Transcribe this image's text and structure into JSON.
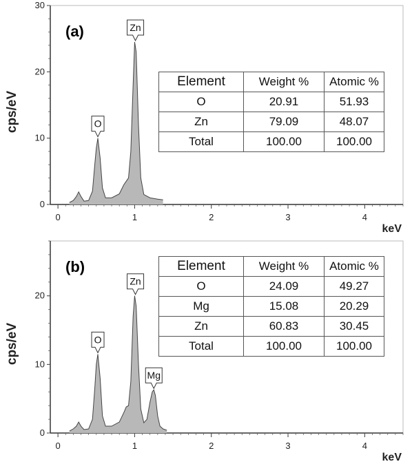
{
  "chart_data": [
    {
      "type": "area",
      "panel_label": "(a)",
      "ylabel": "cps/eV",
      "xunit": "keV",
      "xlim": [
        -0.1,
        4.5
      ],
      "ylim": [
        0,
        30
      ],
      "xticks": [
        0,
        1,
        2,
        3,
        4
      ],
      "yticks": [
        0,
        10,
        20,
        30
      ],
      "spectrum": {
        "x": [
          0.15,
          0.2,
          0.24,
          0.27,
          0.3,
          0.34,
          0.4,
          0.45,
          0.48,
          0.5,
          0.52,
          0.55,
          0.58,
          0.62,
          0.7,
          0.8,
          0.86,
          0.89,
          0.92,
          0.95,
          0.98,
          1.0,
          1.02,
          1.05,
          1.08,
          1.12,
          1.2,
          1.3,
          1.37
        ],
        "y": [
          0.3,
          0.6,
          1.2,
          1.9,
          1.2,
          0.5,
          0.6,
          2.0,
          6.0,
          8.5,
          10.0,
          7.0,
          2.5,
          1.0,
          1.0,
          1.6,
          3.0,
          3.5,
          4.0,
          8.0,
          18.0,
          24.5,
          23.0,
          12.0,
          4.0,
          1.5,
          1.0,
          0.8,
          0.7
        ]
      },
      "peaks": [
        {
          "label": "O",
          "x": 0.52,
          "y": 10.0
        },
        {
          "label": "Zn",
          "x": 1.01,
          "y": 24.5
        }
      ],
      "table": {
        "headers": [
          "Element",
          "Weight %",
          "Atomic %"
        ],
        "rows": [
          [
            "O",
            "20.91",
            "51.93"
          ],
          [
            "Zn",
            "79.09",
            "48.07"
          ],
          [
            "Total",
            "100.00",
            "100.00"
          ]
        ]
      }
    },
    {
      "type": "area",
      "panel_label": "(b)",
      "ylabel": "cps/eV",
      "xunit": "keV",
      "xlim": [
        -0.1,
        4.5
      ],
      "ylim": [
        0,
        28
      ],
      "xticks": [
        0,
        1,
        2,
        3,
        4
      ],
      "yticks": [
        0,
        10,
        20
      ],
      "spectrum": {
        "x": [
          0.15,
          0.2,
          0.24,
          0.27,
          0.3,
          0.34,
          0.4,
          0.45,
          0.48,
          0.5,
          0.52,
          0.55,
          0.58,
          0.62,
          0.7,
          0.8,
          0.86,
          0.89,
          0.92,
          0.95,
          0.98,
          1.0,
          1.02,
          1.05,
          1.08,
          1.12,
          1.16,
          1.2,
          1.23,
          1.25,
          1.27,
          1.3,
          1.33,
          1.37,
          1.42
        ],
        "y": [
          0.3,
          0.6,
          1.0,
          1.6,
          1.0,
          0.5,
          0.6,
          2.0,
          6.5,
          10.0,
          11.5,
          8.0,
          2.5,
          1.0,
          1.0,
          1.6,
          3.0,
          3.8,
          4.0,
          7.5,
          17.0,
          20.0,
          18.5,
          10.0,
          3.5,
          1.5,
          2.0,
          4.5,
          6.0,
          6.3,
          5.5,
          2.5,
          1.0,
          0.6,
          0.4
        ]
      },
      "peaks": [
        {
          "label": "O",
          "x": 0.52,
          "y": 11.5
        },
        {
          "label": "Zn",
          "x": 1.01,
          "y": 20.0
        },
        {
          "label": "Mg",
          "x": 1.25,
          "y": 6.3
        }
      ],
      "table": {
        "headers": [
          "Element",
          "Weight %",
          "Atomic %"
        ],
        "rows": [
          [
            "O",
            "24.09",
            "49.27"
          ],
          [
            "Mg",
            "15.08",
            "20.29"
          ],
          [
            "Zn",
            "60.83",
            "30.45"
          ],
          [
            "Total",
            "100.00",
            "100.00"
          ]
        ]
      }
    }
  ]
}
